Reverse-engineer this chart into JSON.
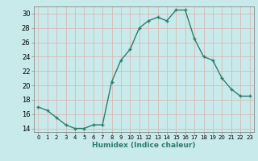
{
  "x": [
    0,
    1,
    2,
    3,
    4,
    5,
    6,
    7,
    8,
    9,
    10,
    11,
    12,
    13,
    14,
    15,
    16,
    17,
    18,
    19,
    20,
    21,
    22,
    23
  ],
  "y": [
    17,
    16.5,
    15.5,
    14.5,
    14,
    14,
    14.5,
    14.5,
    20.5,
    23.5,
    25,
    28,
    29,
    29.5,
    29,
    30.5,
    30.5,
    26.5,
    24,
    23.5,
    21,
    19.5,
    18.5,
    18.5
  ],
  "line_color": "#2d7d6e",
  "bg_color": "#c8eaea",
  "grid_color": "#d8b8b8",
  "xlabel": "Humidex (Indice chaleur)",
  "ylabel": "",
  "xlim": [
    -0.5,
    23.5
  ],
  "ylim": [
    13.5,
    31
  ],
  "yticks": [
    14,
    16,
    18,
    20,
    22,
    24,
    26,
    28,
    30
  ],
  "xticks": [
    0,
    1,
    2,
    3,
    4,
    5,
    6,
    7,
    8,
    9,
    10,
    11,
    12,
    13,
    14,
    15,
    16,
    17,
    18,
    19,
    20,
    21,
    22,
    23
  ],
  "marker_size": 3.5,
  "line_width": 1.0
}
